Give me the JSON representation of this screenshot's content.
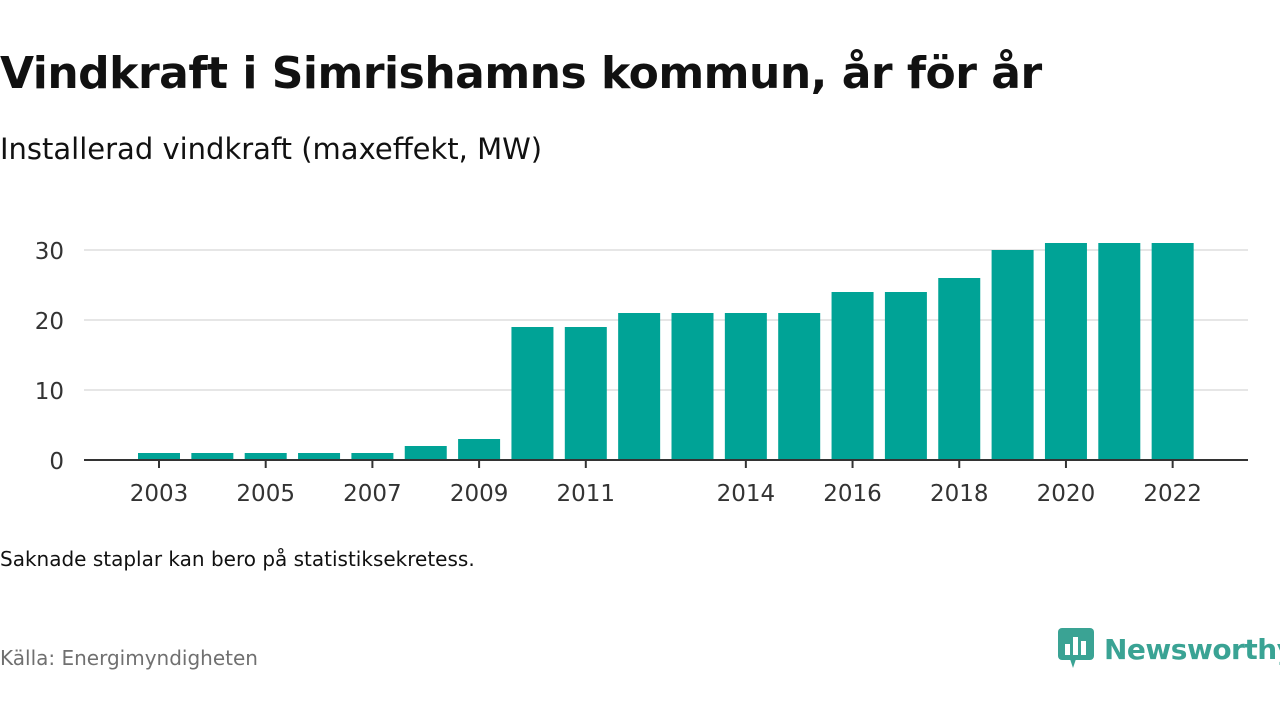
{
  "header": {
    "title": "Vindkraft i Simrishamns kommun, år för år",
    "subtitle": "Installerad vindkraft (maxeffekt, MW)"
  },
  "footer": {
    "note": "Saknade staplar kan bero på statistiksekretess.",
    "source": "Källa: Energimyndigheten",
    "brand": "Newsworthy",
    "brand_icon": "newsworthy-logo-icon"
  },
  "colors": {
    "bar": "#00a396",
    "brand": "#3aa394",
    "grid": "#dddddd",
    "axis": "#333333"
  },
  "chart_data": {
    "type": "bar",
    "categories": [
      "2003",
      "2004",
      "2005",
      "2006",
      "2007",
      "2008",
      "2009",
      "2010",
      "2011",
      "2012",
      "2013",
      "2014",
      "2015",
      "2016",
      "2017",
      "2018",
      "2019",
      "2020",
      "2021",
      "2022"
    ],
    "values": [
      1,
      1,
      1,
      1,
      1,
      2,
      3,
      19,
      19,
      21,
      21,
      21,
      21,
      24,
      24,
      26,
      30,
      31,
      31,
      31
    ],
    "x_tick_labels": [
      "2003",
      "2005",
      "2007",
      "2009",
      "2011",
      "2014",
      "2016",
      "2018",
      "2020",
      "2022"
    ],
    "y_ticks": [
      0,
      10,
      20,
      30
    ],
    "ylim": [
      0,
      33
    ],
    "title": "Vindkraft i Simrishamns kommun, år för år",
    "subtitle": "Installerad vindkraft (maxeffekt, MW)",
    "xlabel": "",
    "ylabel": "",
    "grid": true,
    "legend": "none"
  }
}
